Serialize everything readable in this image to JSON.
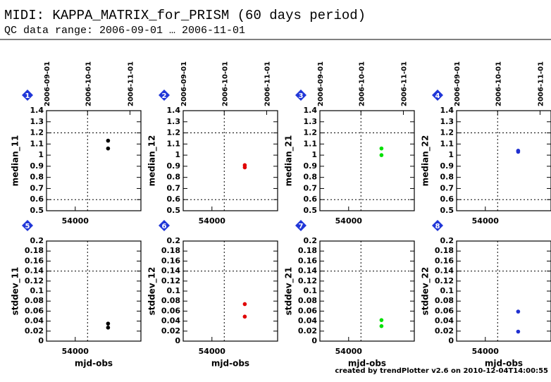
{
  "title": "MIDI: KAPPA_MATRIX_for_PRISM (60 days period)",
  "subtitle": "QC data range: 2006-09-01 … 2006-11-01",
  "footer": "created by trendPlotter v2.6 on 2010-12-04T14:00:55",
  "chart_data": [
    {
      "type": "scatter",
      "panel": "1",
      "ylabel": "median_11",
      "x": [
        54024,
        54024
      ],
      "values": [
        1.13,
        1.06
      ],
      "color": "#000000",
      "xlim": [
        53979,
        54048
      ],
      "xticks": [
        54000
      ],
      "x2ticks": [
        {
          "value": 53979,
          "label": "2006-09-01"
        },
        {
          "value": 54009,
          "label": "2006-10-01"
        },
        {
          "value": 54040,
          "label": "2006-11-01"
        }
      ],
      "ylim": [
        0.5,
        1.4
      ],
      "yticks": [
        0.5,
        0.6,
        0.7,
        0.8,
        0.9,
        1,
        1.1,
        1.2,
        1.3,
        1.4
      ],
      "hlines": [
        0.6,
        1.2
      ],
      "vlines": [
        54009
      ]
    },
    {
      "type": "scatter",
      "panel": "2",
      "ylabel": "median_12",
      "x": [
        54024,
        54024
      ],
      "values": [
        0.91,
        0.89
      ],
      "color": "#e00000",
      "xlim": [
        53979,
        54048
      ],
      "xticks": [
        54000
      ],
      "x2ticks": [
        {
          "value": 53979,
          "label": "2006-09-01"
        },
        {
          "value": 54009,
          "label": "2006-10-01"
        },
        {
          "value": 54040,
          "label": "2006-11-01"
        }
      ],
      "ylim": [
        0.5,
        1.4
      ],
      "yticks": [
        0.5,
        0.6,
        0.7,
        0.8,
        0.9,
        1,
        1.1,
        1.2,
        1.3,
        1.4
      ],
      "hlines": [
        0.6,
        1.2
      ],
      "vlines": [
        54009
      ]
    },
    {
      "type": "scatter",
      "panel": "3",
      "ylabel": "median_21",
      "x": [
        54024,
        54024
      ],
      "values": [
        1.06,
        1.0
      ],
      "color": "#00e000",
      "xlim": [
        53979,
        54048
      ],
      "xticks": [
        54000
      ],
      "x2ticks": [
        {
          "value": 53979,
          "label": "2006-09-01"
        },
        {
          "value": 54009,
          "label": "2006-10-01"
        },
        {
          "value": 54040,
          "label": "2006-11-01"
        }
      ],
      "ylim": [
        0.5,
        1.4
      ],
      "yticks": [
        0.5,
        0.6,
        0.7,
        0.8,
        0.9,
        1,
        1.1,
        1.2,
        1.3,
        1.4
      ],
      "hlines": [
        0.6,
        1.2
      ],
      "vlines": [
        54009
      ]
    },
    {
      "type": "scatter",
      "panel": "4",
      "ylabel": "median_22",
      "x": [
        54024,
        54024
      ],
      "values": [
        1.04,
        1.03
      ],
      "color": "#2030d0",
      "xlim": [
        53979,
        54048
      ],
      "xticks": [
        54000
      ],
      "x2ticks": [
        {
          "value": 53979,
          "label": "2006-09-01"
        },
        {
          "value": 54009,
          "label": "2006-10-01"
        },
        {
          "value": 54040,
          "label": "2006-11-01"
        }
      ],
      "ylim": [
        0.5,
        1.4
      ],
      "yticks": [
        0.5,
        0.6,
        0.7,
        0.8,
        0.9,
        1,
        1.1,
        1.2,
        1.3,
        1.4
      ],
      "hlines": [
        0.6,
        1.2
      ],
      "vlines": [
        54009
      ]
    },
    {
      "type": "scatter",
      "panel": "5",
      "ylabel": "stddev_11",
      "xlabel": "mjd-obs",
      "x": [
        54024,
        54024
      ],
      "values": [
        0.035,
        0.027
      ],
      "color": "#000000",
      "xlim": [
        53979,
        54048
      ],
      "xticks": [
        54000
      ],
      "ylim": [
        0,
        0.2
      ],
      "yticks": [
        0,
        0.02,
        0.04,
        0.06,
        0.08,
        0.1,
        0.12,
        0.14,
        0.16,
        0.18,
        0.2
      ],
      "hlines": [
        0.14
      ],
      "vlines": [
        54009
      ]
    },
    {
      "type": "scatter",
      "panel": "6",
      "ylabel": "stddev_12",
      "xlabel": "mjd-obs",
      "x": [
        54024,
        54024
      ],
      "values": [
        0.074,
        0.049
      ],
      "color": "#e00000",
      "xlim": [
        53979,
        54048
      ],
      "xticks": [
        54000
      ],
      "ylim": [
        0,
        0.2
      ],
      "yticks": [
        0,
        0.02,
        0.04,
        0.06,
        0.08,
        0.1,
        0.12,
        0.14,
        0.16,
        0.18,
        0.2
      ],
      "hlines": [
        0.14
      ],
      "vlines": [
        54009
      ]
    },
    {
      "type": "scatter",
      "panel": "7",
      "ylabel": "stddev_21",
      "xlabel": "mjd-obs",
      "x": [
        54024,
        54024
      ],
      "values": [
        0.042,
        0.03
      ],
      "color": "#00e000",
      "xlim": [
        53979,
        54048
      ],
      "xticks": [
        54000
      ],
      "ylim": [
        0,
        0.2
      ],
      "yticks": [
        0,
        0.02,
        0.04,
        0.06,
        0.08,
        0.1,
        0.12,
        0.14,
        0.16,
        0.18,
        0.2
      ],
      "hlines": [
        0.14
      ],
      "vlines": [
        54009
      ]
    },
    {
      "type": "scatter",
      "panel": "8",
      "ylabel": "stddev_22",
      "xlabel": "mjd-obs",
      "x": [
        54024,
        54024
      ],
      "values": [
        0.059,
        0.019
      ],
      "color": "#2030d0",
      "xlim": [
        53979,
        54048
      ],
      "xticks": [
        54000
      ],
      "ylim": [
        0,
        0.2
      ],
      "yticks": [
        0,
        0.02,
        0.04,
        0.06,
        0.08,
        0.1,
        0.12,
        0.14,
        0.16,
        0.18,
        0.2
      ],
      "hlines": [
        0.14
      ],
      "vlines": [
        54009
      ]
    }
  ]
}
